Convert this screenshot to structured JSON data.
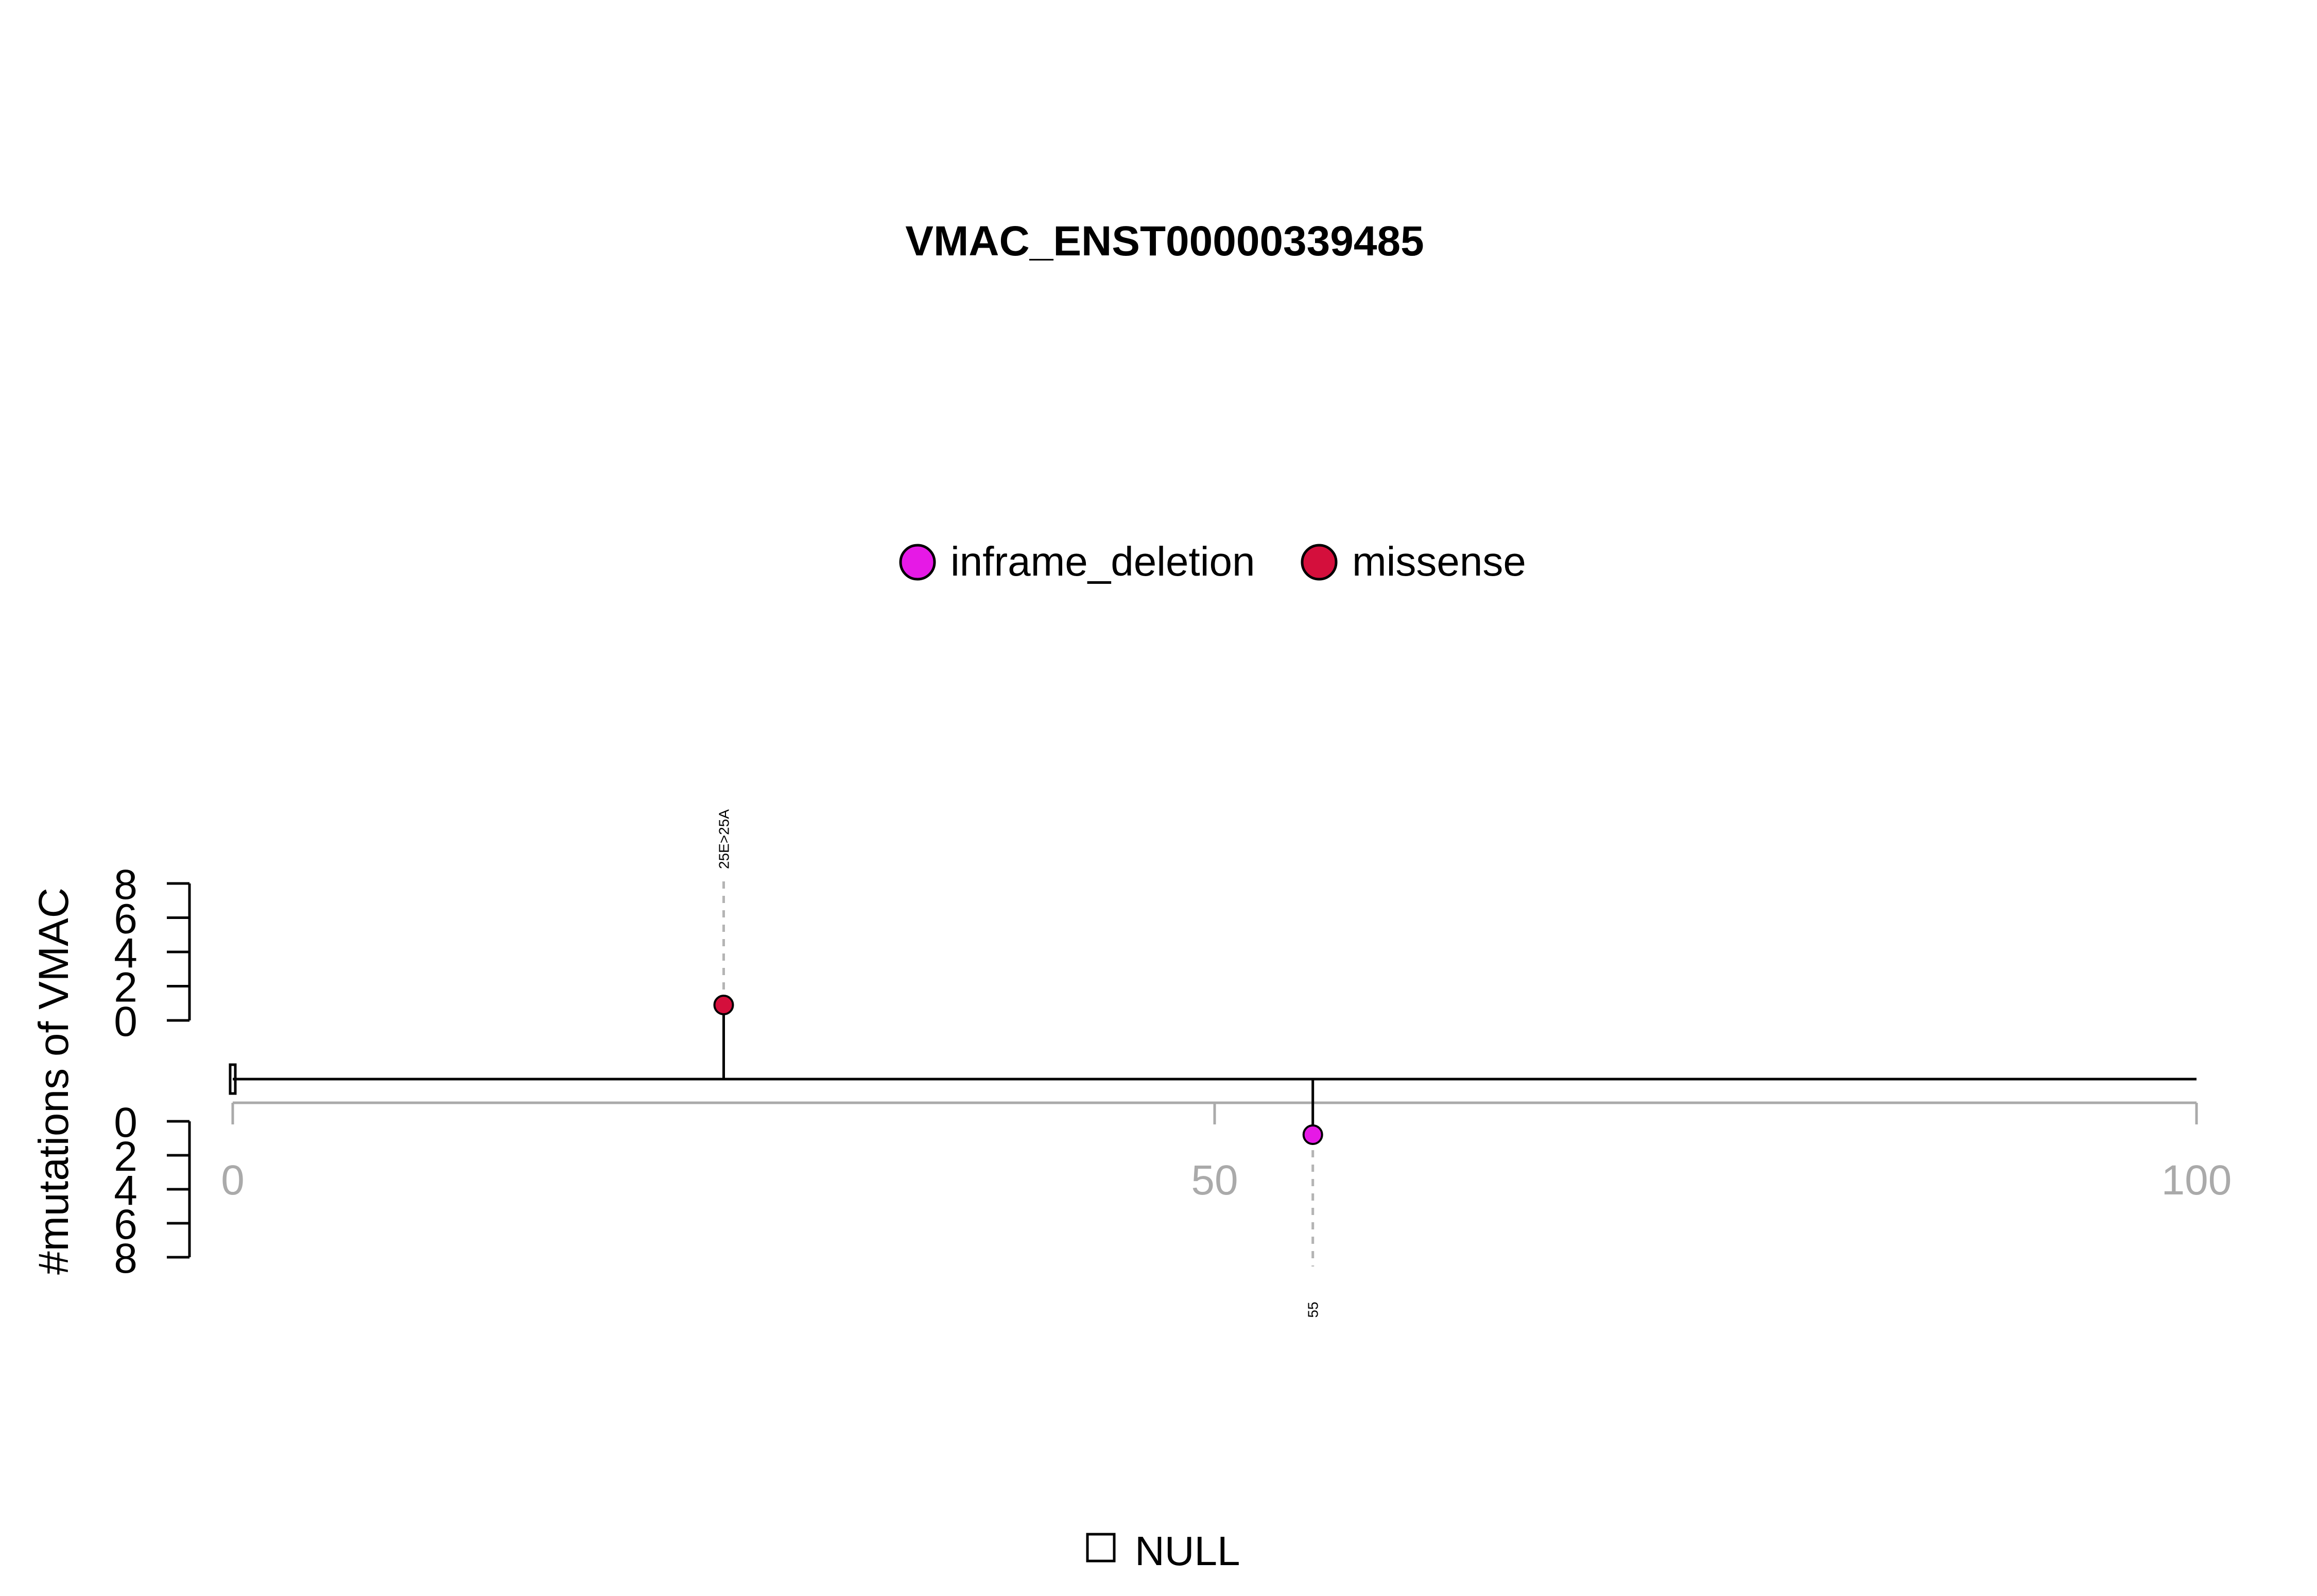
{
  "chart_data": {
    "type": "lollipop",
    "title": "VMAC_ENST00000339485",
    "ylabel": "#mutations of VMAC",
    "xlim": [
      0,
      100
    ],
    "x_ticks": [
      0,
      50,
      100
    ],
    "ylim_top": [
      0,
      8
    ],
    "ylim_bottom": [
      0,
      8
    ],
    "y_ticks": [
      0,
      2,
      4,
      6,
      8
    ],
    "legend": [
      {
        "name": "inframe_deletion",
        "color": "#e619e6"
      },
      {
        "name": "missense",
        "color": "#d40f3c"
      }
    ],
    "mutations": [
      {
        "position": 25,
        "count": 1,
        "type": "missense",
        "label": "25E>25A",
        "side": "top",
        "color": "#d40f3c"
      },
      {
        "position": 55,
        "count": 1,
        "type": "inframe_deletion",
        "label": "55",
        "side": "bottom",
        "color": "#e619e6"
      }
    ],
    "domain_legend": [
      {
        "name": "NULL"
      }
    ]
  }
}
